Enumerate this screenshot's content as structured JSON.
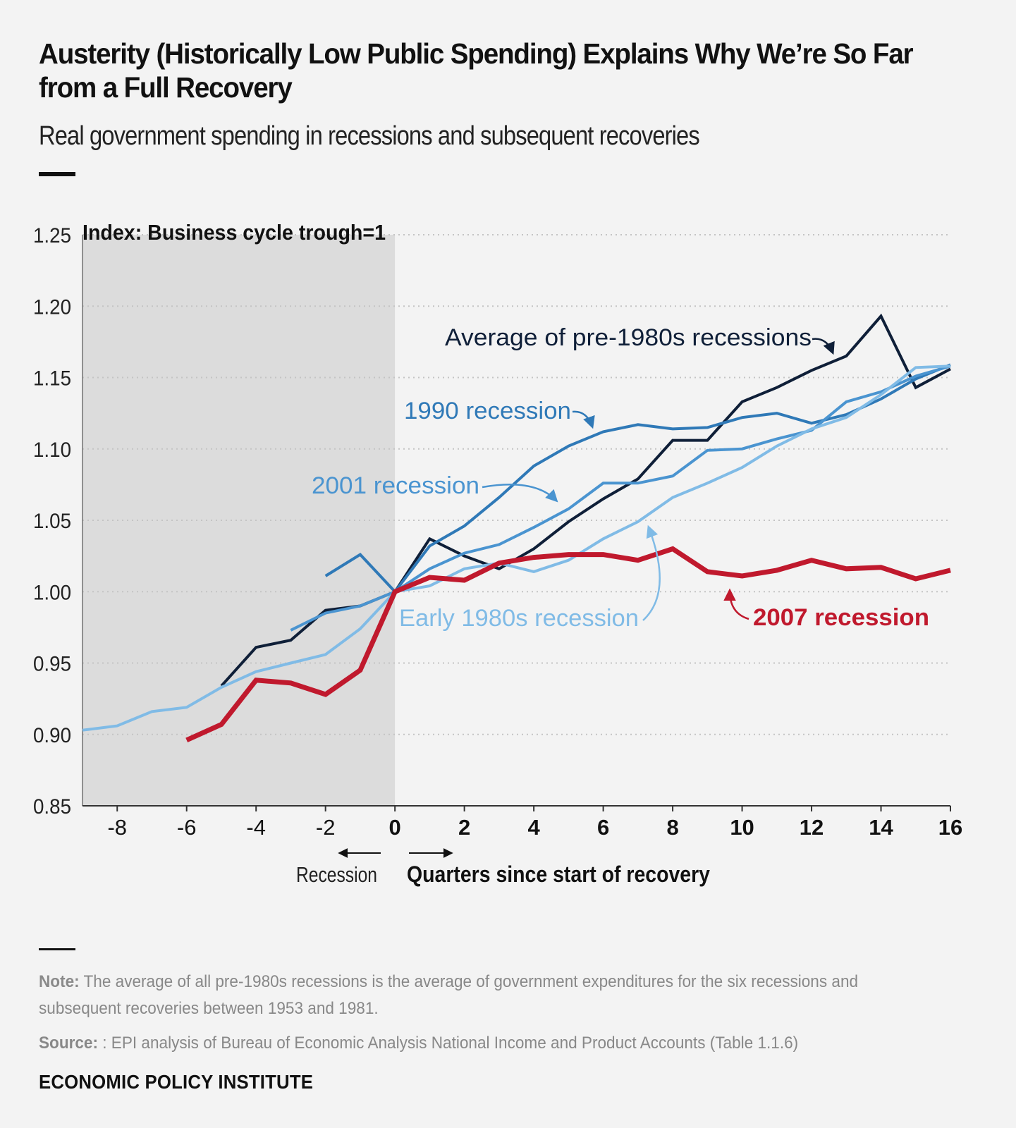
{
  "header": {
    "title": "Austerity (Historically Low Public Spending) Explains Why We’re So Far from a Full Recovery",
    "subtitle": "Real government spending in recessions and subsequent recoveries"
  },
  "footer": {
    "note_label": "Note:",
    "note_text": "The average of all pre-1980s recessions is the average of government expenditures for the six recessions and subsequent recoveries between 1953 and 1981.",
    "source_label": "Source:",
    "source_text": ": EPI analysis of Bureau of Economic Analysis National Income and Product Accounts (Table 1.1.6)",
    "brand": "ECONOMIC POLICY INSTITUTE"
  },
  "chart_data": {
    "type": "line",
    "index_label": "Index: Business cycle trough=1",
    "recession_label": "Recession",
    "xlabel": "Quarters since start of recovery",
    "xlim": [
      -9,
      16
    ],
    "ylim": [
      0.85,
      1.25
    ],
    "x_ticks": [
      -8,
      -6,
      -4,
      -2,
      0,
      2,
      4,
      6,
      8,
      10,
      12,
      14,
      16
    ],
    "y_ticks": [
      "0.85",
      "0.90",
      "0.95",
      "1.00",
      "1.05",
      "1.10",
      "1.15",
      "1.20",
      "1.25"
    ],
    "shaded_region": [
      -9,
      0
    ],
    "grid": "horizontal dotted",
    "series": [
      {
        "name": "Average of pre-1980s recessions",
        "color": "#0f1f38",
        "x": [
          -5,
          -4,
          -3,
          -2,
          -1,
          0,
          1,
          2,
          3,
          4,
          5,
          6,
          7,
          8,
          9,
          10,
          11,
          12,
          13,
          14,
          15,
          16
        ],
        "values": [
          0.934,
          0.961,
          0.966,
          0.987,
          0.99,
          1.0,
          1.037,
          1.025,
          1.016,
          1.03,
          1.049,
          1.065,
          1.079,
          1.106,
          1.106,
          1.133,
          1.143,
          1.155,
          1.165,
          1.193,
          1.143,
          1.156
        ]
      },
      {
        "name": "1990 recession",
        "color": "#2f79b7",
        "x": [
          -2,
          -1,
          0,
          1,
          2,
          3,
          4,
          5,
          6,
          7,
          8,
          9,
          10,
          11,
          12,
          13,
          14,
          15,
          16
        ],
        "values": [
          1.011,
          1.026,
          1.0,
          1.032,
          1.046,
          1.066,
          1.088,
          1.102,
          1.112,
          1.117,
          1.114,
          1.115,
          1.122,
          1.125,
          1.118,
          1.124,
          1.135,
          1.149,
          1.159
        ]
      },
      {
        "name": "2001 recession",
        "color": "#4a94d0",
        "x": [
          -3,
          -2,
          -1,
          0,
          1,
          2,
          3,
          4,
          5,
          6,
          7,
          8,
          9,
          10,
          11,
          12,
          13,
          14,
          15,
          16
        ],
        "values": [
          0.973,
          0.985,
          0.99,
          1.0,
          1.016,
          1.027,
          1.033,
          1.045,
          1.058,
          1.076,
          1.076,
          1.081,
          1.099,
          1.1,
          1.107,
          1.113,
          1.133,
          1.14,
          1.151,
          1.158
        ]
      },
      {
        "name": "Early 1980s recession",
        "color": "#80bbe6",
        "x": [
          -9,
          -8,
          -7,
          -6,
          -5,
          -4,
          -3,
          -2,
          -1,
          0,
          1,
          2,
          3,
          4,
          5,
          6,
          7,
          8,
          9,
          10,
          11,
          12,
          13,
          14,
          15,
          16
        ],
        "values": [
          0.903,
          0.906,
          0.916,
          0.919,
          0.933,
          0.944,
          0.95,
          0.956,
          0.974,
          1.0,
          1.004,
          1.016,
          1.02,
          1.014,
          1.022,
          1.037,
          1.049,
          1.066,
          1.076,
          1.087,
          1.102,
          1.114,
          1.122,
          1.138,
          1.157,
          1.158
        ]
      },
      {
        "name": "2007 recession",
        "color": "#c0192d",
        "x": [
          -6,
          -5,
          -4,
          -3,
          -2,
          -1,
          0,
          1,
          2,
          3,
          4,
          5,
          6,
          7,
          8,
          9,
          10,
          11,
          12,
          13,
          14,
          15,
          16
        ],
        "values": [
          0.896,
          0.907,
          0.938,
          0.936,
          0.928,
          0.945,
          1.0,
          1.01,
          1.008,
          1.02,
          1.024,
          1.026,
          1.026,
          1.022,
          1.03,
          1.014,
          1.011,
          1.015,
          1.022,
          1.016,
          1.017,
          1.009,
          1.015
        ]
      }
    ],
    "annotations": [
      {
        "text": "Average of pre-1980s recessions"
      },
      {
        "text": "1990 recession"
      },
      {
        "text": "2001 recession"
      },
      {
        "text": "Early 1980s recession"
      },
      {
        "text": "2007 recession"
      }
    ]
  }
}
